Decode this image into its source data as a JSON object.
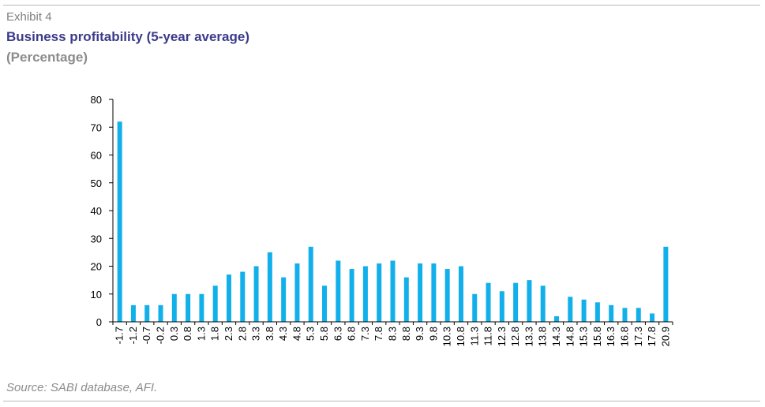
{
  "header": {
    "exhibit": "Exhibit 4",
    "title": "Business profitability (5-year average)",
    "subtitle": "(Percentage)"
  },
  "footer": {
    "source": "Source: SABI database, AFI."
  },
  "colors": {
    "bar": "#12b0ea",
    "title": "#3b3b8a",
    "muted": "#8c8c8c",
    "axis": "#000000",
    "rule": "#b8b8b8"
  },
  "chart_data": {
    "type": "bar",
    "title": "Business profitability (5-year average)",
    "subtitle": "(Percentage)",
    "xlabel": "",
    "ylabel": "",
    "ylim": [
      0,
      80
    ],
    "yticks": [
      0,
      10,
      20,
      30,
      40,
      50,
      60,
      70,
      80
    ],
    "grid": false,
    "legend": "none",
    "categories": [
      "-1.7",
      "-1.2",
      "-0.7",
      "-0.2",
      "0.3",
      "0.8",
      "1.3",
      "1.8",
      "2.3",
      "2.8",
      "3.3",
      "3.8",
      "4.3",
      "4.8",
      "5.3",
      "5.8",
      "6.3",
      "6.8",
      "7.3",
      "7.8",
      "8.3",
      "8.8",
      "9.3",
      "9.8",
      "10.3",
      "10.8",
      "11.3",
      "11.8",
      "12.3",
      "12.8",
      "13.3",
      "13.8",
      "14.3",
      "14.8",
      "15.3",
      "15.8",
      "16.3",
      "16.8",
      "17.3",
      "17.8",
      "20.9"
    ],
    "values": [
      72,
      6,
      6,
      6,
      10,
      10,
      10,
      13,
      17,
      18,
      20,
      25,
      16,
      21,
      27,
      13,
      22,
      19,
      20,
      21,
      22,
      16,
      21,
      21,
      19,
      20,
      10,
      14,
      11,
      14,
      15,
      13,
      2,
      9,
      8,
      7,
      6,
      5,
      5,
      3,
      27
    ]
  }
}
